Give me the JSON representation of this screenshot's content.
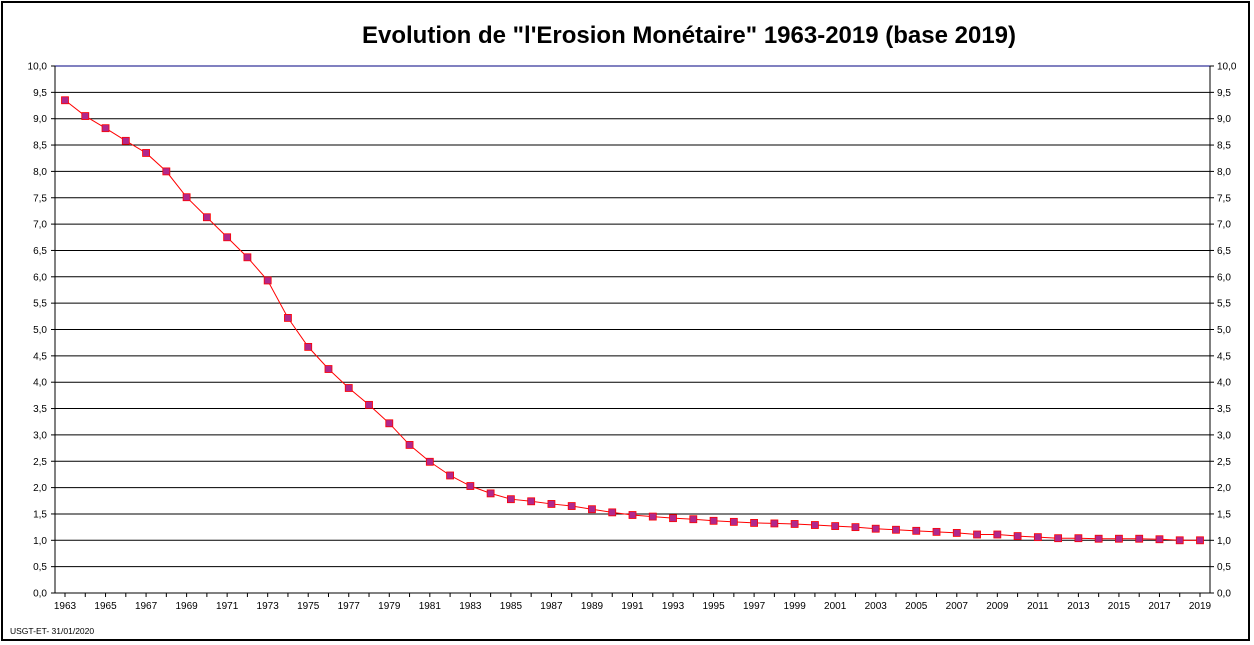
{
  "chart_data": {
    "type": "line",
    "title": "Evolution de \"l'Erosion Monétaire\"  1963-2019 (base 2019)",
    "xlabel": "",
    "ylabel": "",
    "ylim": [
      0,
      10
    ],
    "y_tick_step": 0.5,
    "grid": true,
    "legend": "none",
    "colors": {
      "line": "#ff0000",
      "marker": "#b0288c",
      "grid": "#000000",
      "top_line": "#000080"
    },
    "x_tick_labels": [
      "1963",
      "1965",
      "1967",
      "1969",
      "1971",
      "1973",
      "1975",
      "1977",
      "1979",
      "1981",
      "1983",
      "1985",
      "1987",
      "1989",
      "1991",
      "1993",
      "1995",
      "1997",
      "1999",
      "2001",
      "2003",
      "2005",
      "2007",
      "2009",
      "2011",
      "2013",
      "2015",
      "2017",
      "2019"
    ],
    "x": [
      1963,
      1964,
      1965,
      1966,
      1967,
      1968,
      1969,
      1970,
      1971,
      1972,
      1973,
      1974,
      1975,
      1976,
      1977,
      1978,
      1979,
      1980,
      1981,
      1982,
      1983,
      1984,
      1985,
      1986,
      1987,
      1988,
      1989,
      1990,
      1991,
      1992,
      1993,
      1994,
      1995,
      1996,
      1997,
      1998,
      1999,
      2000,
      2001,
      2002,
      2003,
      2004,
      2005,
      2006,
      2007,
      2008,
      2009,
      2010,
      2011,
      2012,
      2013,
      2014,
      2015,
      2016,
      2017,
      2018,
      2019
    ],
    "series": [
      {
        "values": [
          9.35,
          9.05,
          8.82,
          8.58,
          8.35,
          8.0,
          7.51,
          7.13,
          6.75,
          6.37,
          5.93,
          5.22,
          4.67,
          4.25,
          3.89,
          3.57,
          3.22,
          2.81,
          2.49,
          2.23,
          2.03,
          1.89,
          1.78,
          1.74,
          1.69,
          1.65,
          1.59,
          1.53,
          1.48,
          1.45,
          1.42,
          1.4,
          1.37,
          1.35,
          1.33,
          1.32,
          1.31,
          1.29,
          1.27,
          1.25,
          1.22,
          1.2,
          1.18,
          1.16,
          1.14,
          1.11,
          1.11,
          1.08,
          1.06,
          1.04,
          1.04,
          1.03,
          1.03,
          1.03,
          1.02,
          1.0,
          1.0
        ]
      }
    ]
  },
  "footnote": "USGT-ET- 31/01/2020"
}
